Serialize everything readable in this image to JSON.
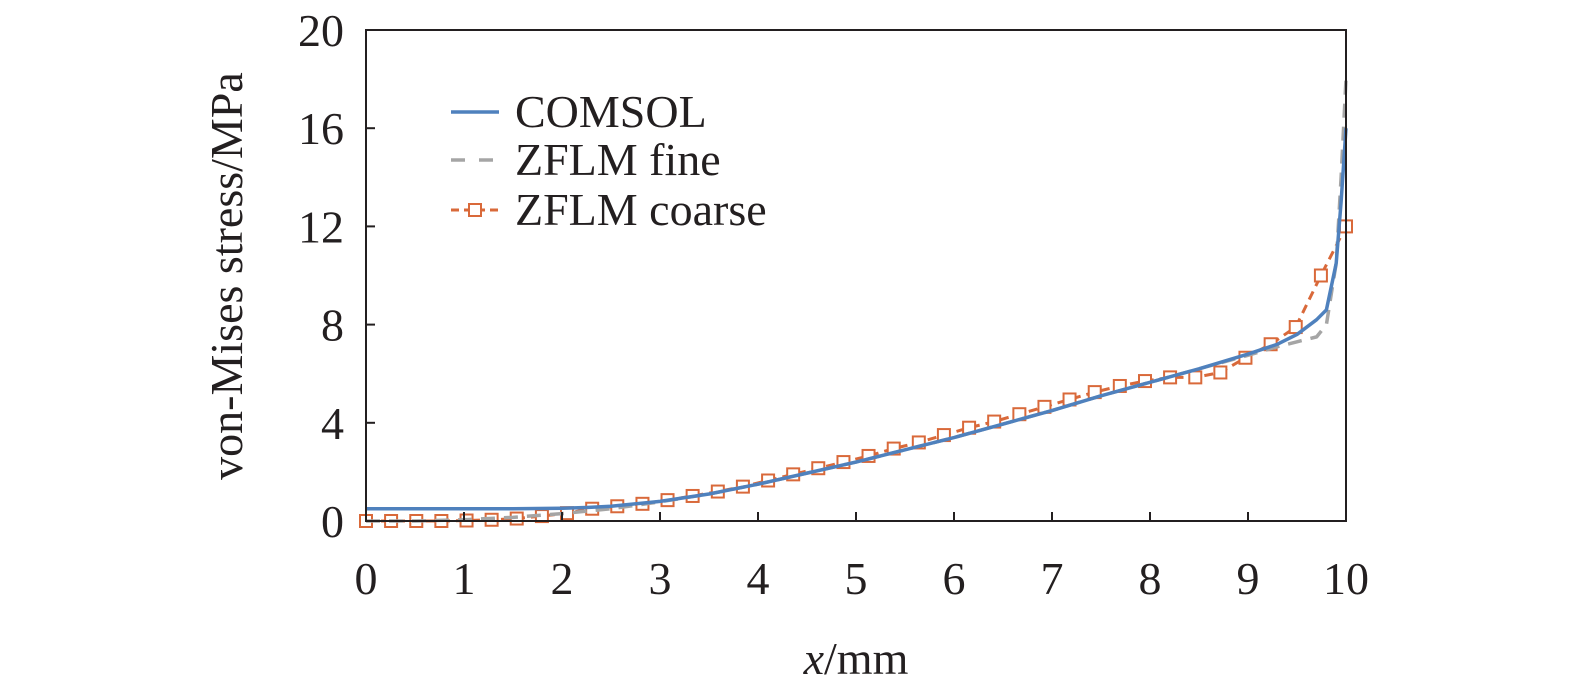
{
  "chart_data": {
    "type": "line",
    "title": "",
    "xlabel_italic": "x",
    "xlabel_rest": "/mm",
    "ylabel": "von-Mises stress/MPa",
    "xlim": [
      0,
      10
    ],
    "ylim": [
      0,
      20
    ],
    "xticks": [
      "0",
      "1",
      "2",
      "3",
      "4",
      "5",
      "6",
      "7",
      "8",
      "9",
      "10"
    ],
    "yticks": [
      "0",
      "4",
      "8",
      "12",
      "16",
      "20"
    ],
    "grid": false,
    "legend_position": "top-left",
    "series": [
      {
        "name": "COMSOL",
        "color": "#4f81bd",
        "style": "solid",
        "x": [
          0,
          0.5,
          1,
          1.5,
          2,
          2.25,
          2.5,
          3,
          3.5,
          4,
          4.5,
          5,
          5.5,
          6,
          6.5,
          7,
          7.5,
          8,
          8.5,
          9,
          9.3,
          9.5,
          9.6,
          9.7,
          9.8,
          9.9,
          9.95,
          10
        ],
        "y": [
          0.5,
          0.5,
          0.5,
          0.5,
          0.52,
          0.55,
          0.6,
          0.8,
          1.1,
          1.5,
          1.95,
          2.4,
          2.9,
          3.4,
          3.95,
          4.5,
          5.1,
          5.65,
          6.2,
          6.8,
          7.2,
          7.6,
          7.9,
          8.2,
          8.6,
          10.5,
          13,
          16
        ]
      },
      {
        "name": "ZFLM fine",
        "color": "#a5a5a5",
        "style": "dashed",
        "x": [
          0,
          0.5,
          1,
          1.5,
          2,
          2.5,
          3,
          3.5,
          4,
          4.5,
          5,
          5.5,
          6,
          6.5,
          7,
          7.5,
          8,
          8.5,
          9,
          9.3,
          9.5,
          9.6,
          9.7,
          9.8,
          9.9,
          9.95,
          10
        ],
        "y": [
          0,
          0,
          0.05,
          0.15,
          0.3,
          0.5,
          0.78,
          1.1,
          1.5,
          1.95,
          2.4,
          2.9,
          3.4,
          3.95,
          4.5,
          5.1,
          5.65,
          6.2,
          6.75,
          7.1,
          7.3,
          7.4,
          7.5,
          8.0,
          10.5,
          14,
          18
        ]
      },
      {
        "name": "ZFLM coarse",
        "color": "#d9693a",
        "style": "dashed-square",
        "x": [
          0,
          0.256,
          0.513,
          0.769,
          1.026,
          1.282,
          1.538,
          1.795,
          2.051,
          2.308,
          2.564,
          2.821,
          3.077,
          3.333,
          3.59,
          3.846,
          4.103,
          4.359,
          4.615,
          4.872,
          5.128,
          5.385,
          5.641,
          5.897,
          6.154,
          6.41,
          6.667,
          6.923,
          7.179,
          7.436,
          7.692,
          7.949,
          8.205,
          8.462,
          8.718,
          8.974,
          9.231,
          9.487,
          9.744,
          10
        ],
        "y": [
          0,
          0,
          0,
          0,
          0.02,
          0.05,
          0.1,
          0.2,
          0.32,
          0.5,
          0.6,
          0.7,
          0.85,
          1.02,
          1.2,
          1.4,
          1.65,
          1.9,
          2.15,
          2.4,
          2.65,
          2.95,
          3.2,
          3.5,
          3.8,
          4.05,
          4.35,
          4.65,
          4.95,
          5.25,
          5.5,
          5.7,
          5.85,
          5.85,
          6.05,
          6.65,
          7.2,
          7.9,
          10,
          12
        ]
      }
    ]
  }
}
